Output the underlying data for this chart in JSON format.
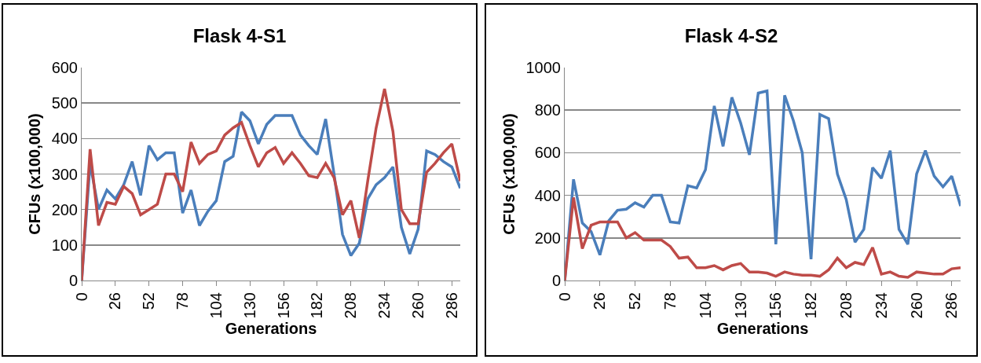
{
  "chart_data": [
    {
      "type": "line",
      "title": "Flask 4-S1",
      "xlabel": "Generations",
      "ylabel": "CFUs (x100,000)",
      "grid": "y",
      "marker": "none",
      "line_style": "solid",
      "x": [
        0,
        6.5,
        13,
        19.5,
        26,
        32.5,
        39,
        45.5,
        52,
        58.5,
        65,
        71.5,
        78,
        84.5,
        91,
        97.5,
        104,
        110.5,
        117,
        123.5,
        130,
        136.5,
        143,
        149.5,
        156,
        162.5,
        169,
        175.5,
        182,
        188.5,
        195,
        201.5,
        208,
        214.5,
        221,
        227.5,
        234,
        240.5,
        247,
        253.5,
        260,
        266.5,
        273,
        279.5,
        286,
        292.5
      ],
      "xlim": [
        0,
        292.5
      ],
      "xticks": [
        0,
        26,
        52,
        78,
        104,
        130,
        156,
        182,
        208,
        234,
        260,
        286
      ],
      "ylim": [
        0,
        600
      ],
      "yticks": [
        0,
        100,
        200,
        300,
        400,
        500,
        600
      ],
      "series": [
        {
          "color": "#4a7ebb",
          "values": [
            0,
            330,
            200,
            255,
            230,
            270,
            335,
            240,
            380,
            340,
            360,
            360,
            190,
            255,
            155,
            195,
            225,
            335,
            350,
            475,
            450,
            385,
            440,
            465,
            465,
            465,
            410,
            380,
            355,
            455,
            300,
            130,
            70,
            105,
            230,
            270,
            290,
            320,
            150,
            75,
            145,
            365,
            355,
            335,
            320,
            260
          ]
        },
        {
          "color": "#be4b48",
          "values": [
            0,
            370,
            155,
            220,
            215,
            265,
            245,
            185,
            200,
            215,
            300,
            300,
            250,
            390,
            330,
            355,
            365,
            410,
            430,
            445,
            380,
            320,
            360,
            375,
            330,
            360,
            330,
            295,
            290,
            330,
            290,
            185,
            225,
            120,
            280,
            430,
            540,
            420,
            200,
            160,
            160,
            305,
            330,
            360,
            385,
            280
          ]
        }
      ]
    },
    {
      "type": "line",
      "title": "Flask 4-S2",
      "xlabel": "Generations",
      "ylabel": "CFUs (x100,000)",
      "grid": "y",
      "marker": "none",
      "line_style": "solid",
      "x": [
        0,
        6.5,
        13,
        19.5,
        26,
        32.5,
        39,
        45.5,
        52,
        58.5,
        65,
        71.5,
        78,
        84.5,
        91,
        97.5,
        104,
        110.5,
        117,
        123.5,
        130,
        136.5,
        143,
        149.5,
        156,
        162.5,
        169,
        175.5,
        182,
        188.5,
        195,
        201.5,
        208,
        214.5,
        221,
        227.5,
        234,
        240.5,
        247,
        253.5,
        260,
        266.5,
        273,
        279.5,
        286,
        292.5
      ],
      "xlim": [
        0,
        292.5
      ],
      "xticks": [
        0,
        26,
        52,
        78,
        104,
        130,
        156,
        182,
        208,
        234,
        260,
        286
      ],
      "ylim": [
        0,
        1000
      ],
      "yticks": [
        0,
        200,
        400,
        600,
        800,
        1000
      ],
      "series": [
        {
          "color": "#4a7ebb",
          "values": [
            0,
            475,
            270,
            230,
            120,
            280,
            330,
            335,
            365,
            345,
            400,
            400,
            275,
            270,
            445,
            435,
            520,
            820,
            630,
            860,
            740,
            590,
            880,
            890,
            170,
            870,
            750,
            600,
            100,
            780,
            760,
            500,
            380,
            180,
            240,
            530,
            480,
            610,
            240,
            170,
            500,
            610,
            490,
            440,
            490,
            350
          ]
        },
        {
          "color": "#be4b48",
          "values": [
            0,
            390,
            150,
            260,
            275,
            275,
            275,
            200,
            225,
            190,
            190,
            190,
            160,
            105,
            110,
            60,
            60,
            70,
            50,
            70,
            80,
            40,
            40,
            35,
            20,
            40,
            30,
            25,
            25,
            20,
            50,
            105,
            60,
            85,
            75,
            155,
            30,
            40,
            20,
            15,
            40,
            35,
            30,
            30,
            55,
            60
          ]
        }
      ]
    }
  ]
}
